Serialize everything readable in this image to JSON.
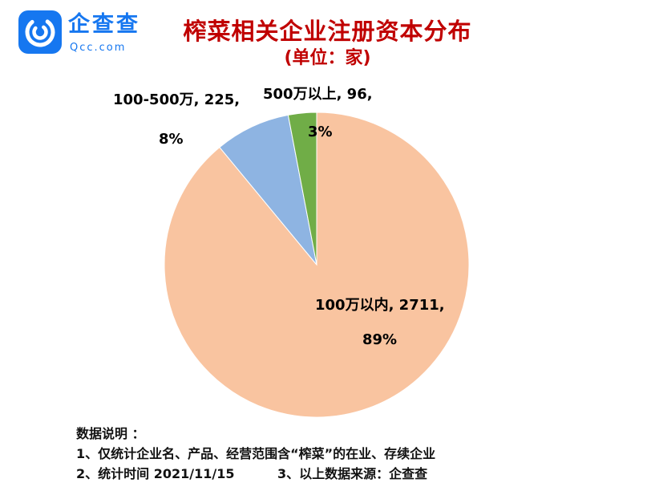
{
  "logo": {
    "brand": "企查查",
    "domain": "Qcc.com"
  },
  "header": {
    "title": "榨菜相关企业注册资本分布",
    "subtitle": "(单位：家)"
  },
  "chart_data": {
    "type": "pie",
    "title": "榨菜相关企业注册资本分布",
    "unit": "家",
    "categories": [
      "100万以内",
      "100-500万",
      "500万以上"
    ],
    "values": [
      2711,
      225,
      96
    ],
    "percents": [
      89,
      8,
      3
    ],
    "colors": [
      "#F9C4A0",
      "#8EB4E2",
      "#70AD47"
    ],
    "start_angle_deg": 0,
    "direction": "clockwise",
    "legend_position": "none",
    "data_label_format": "category, value, percent"
  },
  "pie_labels": {
    "inside_line1": "100万以内, 2711,",
    "inside_line2": "89%",
    "blue_line1": "100-500万, 225,",
    "blue_line2": "8%",
    "green_line1": "500万以上, 96,",
    "green_line2": "3%"
  },
  "footer": {
    "heading": "数据说明 ：",
    "note1": "1、仅统计企业名、产品、经营范围含“榨菜”的在业、存续企业",
    "note2": "2、统计时间 2021/11/15",
    "note3": "3、以上数据来源：企查查"
  }
}
